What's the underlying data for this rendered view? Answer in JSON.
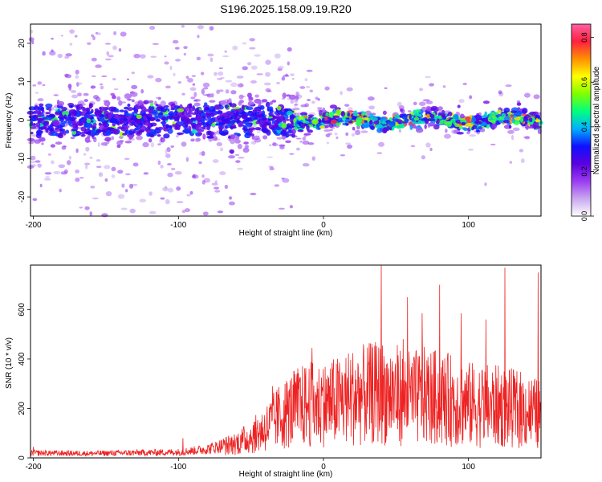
{
  "title": "S196.2025.158.09.19.R20",
  "chart_data": [
    {
      "type": "heatmap",
      "xlabel": "Height of straight line (km)",
      "ylabel": "Frequency (Hz)",
      "xlim": [
        -202,
        150
      ],
      "ylim": [
        -25,
        25
      ],
      "x_ticks": [
        -200,
        -100,
        0,
        100
      ],
      "y_ticks": [
        -20,
        -10,
        0,
        10,
        20
      ],
      "colorbar": {
        "label": "Normalized spectral amplitude",
        "range": [
          0.0,
          0.86
        ],
        "ticks": [
          0.0,
          0.2,
          0.4,
          0.6,
          0.8
        ],
        "colormap": [
          "#ffffff",
          "#c8a8f0",
          "#9a3cf0",
          "#5a00e0",
          "#1010ff",
          "#00b0ff",
          "#00ff80",
          "#80ff00",
          "#ffff00",
          "#ff9000",
          "#ff2040",
          "#ff60a0"
        ]
      },
      "description_values": {
        "band_center_hz": 0,
        "band_width_below_minus20km_hz": 5,
        "band_width_above_0km_hz": 2,
        "peak_normalized_amplitude": 0.86
      },
      "grid": false
    },
    {
      "type": "line",
      "xlabel": "Height of straight line (km)",
      "ylabel": "SNR (10 * v/v)",
      "xlim": [
        -202,
        150
      ],
      "ylim": [
        0,
        780
      ],
      "x_ticks": [
        -200,
        -100,
        0,
        100
      ],
      "y_ticks": [
        0,
        200,
        400,
        600
      ],
      "series": [
        {
          "color": "#ee2222",
          "x": [
            -200,
            -180,
            -160,
            -140,
            -120,
            -100,
            -90,
            -80,
            -70,
            -60,
            -50,
            -40,
            -30,
            -20,
            -10,
            0,
            10,
            20,
            30,
            40,
            50,
            60,
            70,
            80,
            90,
            100,
            110,
            120,
            130,
            140,
            150
          ],
          "y": [
            22,
            21,
            20,
            22,
            24,
            26,
            32,
            40,
            55,
            75,
            105,
            150,
            210,
            250,
            270,
            270,
            285,
            310,
            320,
            330,
            320,
            300,
            310,
            300,
            290,
            270,
            265,
            260,
            250,
            240,
            215
          ],
          "peaks": [
            {
              "x": -200,
              "y": 45
            },
            {
              "x": -97,
              "y": 80
            },
            {
              "x": -57,
              "y": 95
            },
            {
              "x": -35,
              "y": 290
            },
            {
              "x": -8,
              "y": 445
            },
            {
              "x": 0,
              "y": 360
            },
            {
              "x": 40,
              "y": 780
            },
            {
              "x": 55,
              "y": 480
            },
            {
              "x": 58,
              "y": 650
            },
            {
              "x": 68,
              "y": 585
            },
            {
              "x": 80,
              "y": 700
            },
            {
              "x": 95,
              "y": 585
            },
            {
              "x": 112,
              "y": 560
            },
            {
              "x": 125,
              "y": 770
            },
            {
              "x": 148,
              "y": 750
            }
          ]
        }
      ],
      "grid": false
    }
  ]
}
